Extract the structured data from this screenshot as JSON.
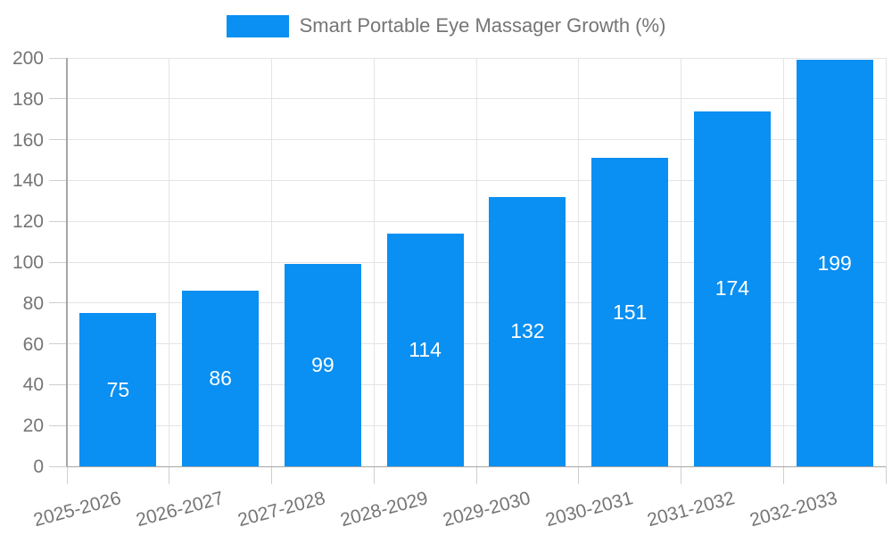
{
  "chart_data": {
    "type": "bar",
    "series_name": "Smart Portable Eye Massager Growth (%)",
    "categories": [
      "2025-2026",
      "2026-2027",
      "2027-2028",
      "2028-2029",
      "2029-2030",
      "2030-2031",
      "2031-2032",
      "2032-2033"
    ],
    "values": [
      75,
      86,
      99,
      114,
      132,
      151,
      174,
      199
    ],
    "ylim": [
      0,
      200
    ],
    "ytick_step": 20,
    "yticks": [
      0,
      20,
      40,
      60,
      80,
      100,
      120,
      140,
      160,
      180,
      200
    ],
    "grid": true,
    "legend_position": "top",
    "value_labels": "inside-center",
    "x_label_rotation_deg": -15,
    "colors": {
      "bar": "#0a8ff2",
      "value_label": "#ffffff",
      "axis": "#a6a6a6",
      "gridline": "#e4e4e4",
      "tick": "#cfcfcf",
      "text": "#757575",
      "background": "#ffffff"
    }
  }
}
